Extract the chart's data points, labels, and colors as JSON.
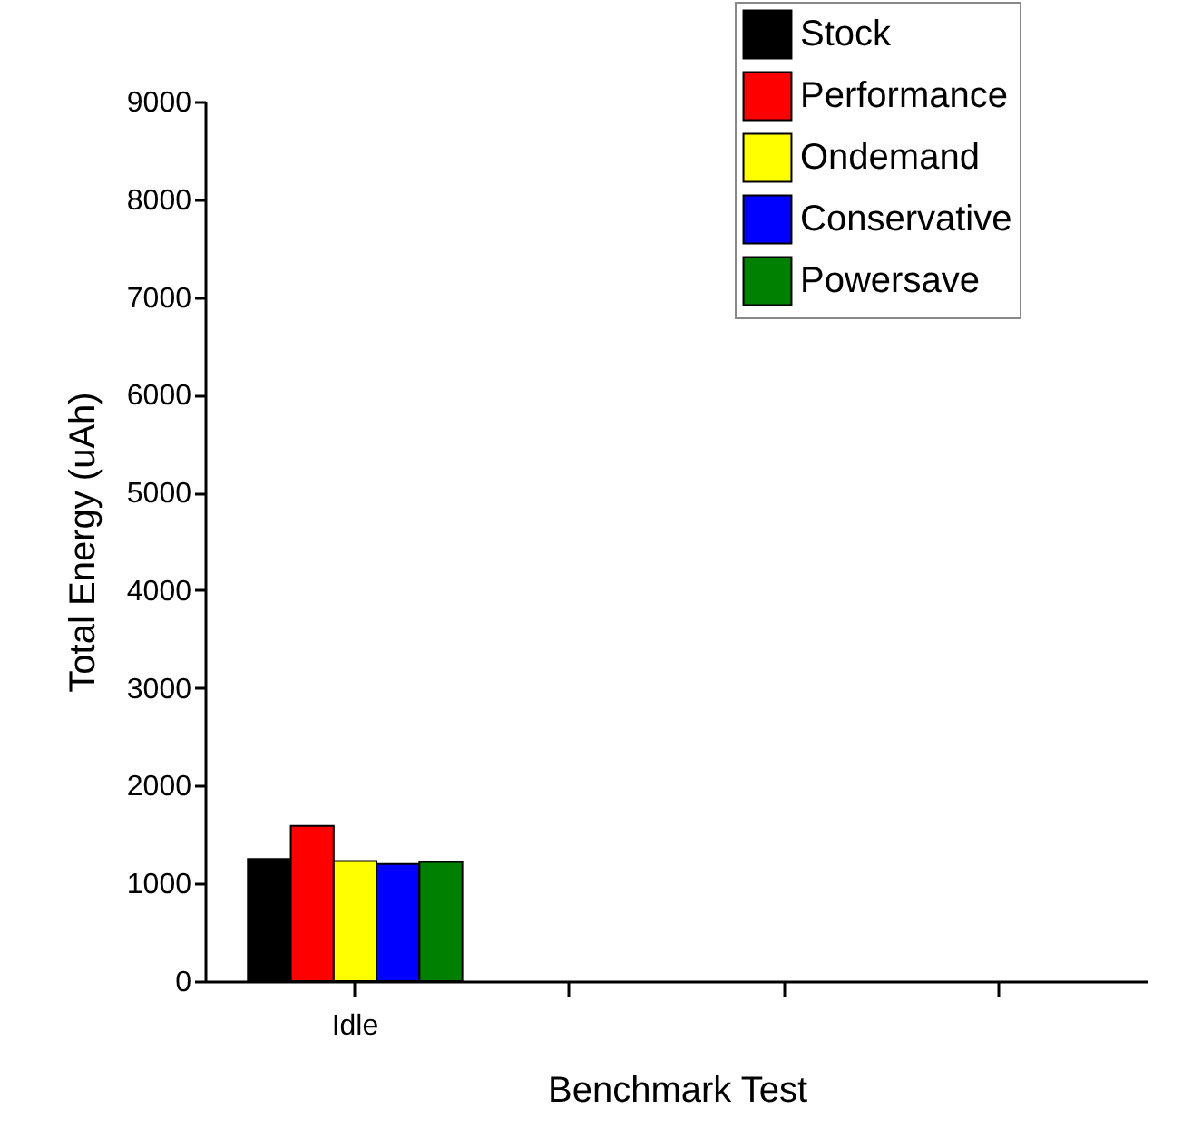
{
  "chart_data": {
    "type": "bar",
    "xlabel": "Benchmark Test",
    "ylabel": "Total Energy (uAh)",
    "categories": [
      "Idle",
      null,
      null,
      null
    ],
    "series": [
      {
        "name": "Stock",
        "color": "#000000",
        "values": [
          1250,
          null,
          null,
          null
        ]
      },
      {
        "name": "Performance",
        "color": "#ff0000",
        "values": [
          1590,
          null,
          null,
          null
        ]
      },
      {
        "name": "Ondemand",
        "color": "#ffff00",
        "values": [
          1230,
          null,
          null,
          null
        ]
      },
      {
        "name": "Conservative",
        "color": "#0000ff",
        "values": [
          1200,
          null,
          null,
          null
        ]
      },
      {
        "name": "Powersave",
        "color": "#008000",
        "values": [
          1220,
          null,
          null,
          null
        ]
      }
    ],
    "ylim": [
      0,
      9000
    ],
    "yticks": [
      0,
      1000,
      2000,
      3000,
      4000,
      5000,
      6000,
      7000,
      8000,
      9000
    ],
    "legend": "top right"
  }
}
